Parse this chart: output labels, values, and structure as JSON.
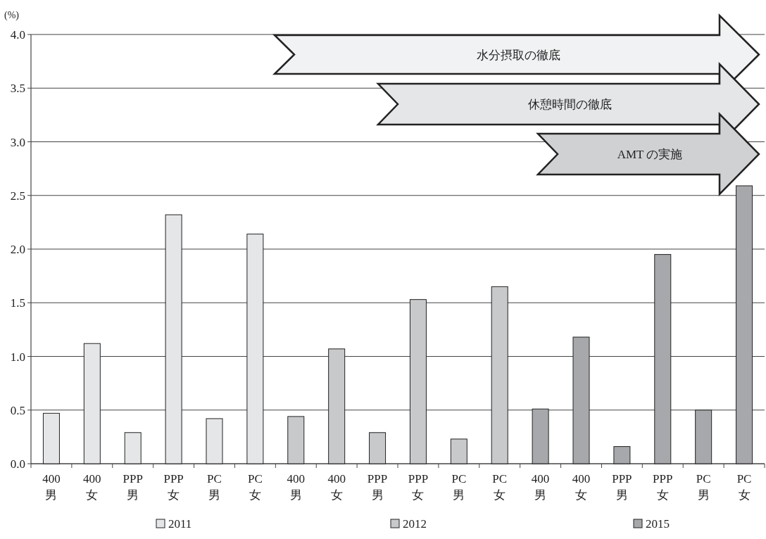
{
  "chart_data": {
    "type": "bar",
    "ylabel": "(%)",
    "categories": [
      "400\n男",
      "400\n女",
      "PPP\n男",
      "PPP\n女",
      "PC\n男",
      "PC\n女",
      "400\n男",
      "400\n女",
      "PPP\n男",
      "PPP\n女",
      "PC\n男",
      "PC\n女",
      "400\n男",
      "400\n女",
      "PPP\n男",
      "PPP\n女",
      "PC\n男",
      "PC\n女"
    ],
    "series": [
      {
        "name": "2011",
        "color": "#e5e6e8",
        "values": [
          0.47,
          1.12,
          0.29,
          2.32,
          0.42,
          2.14,
          null,
          null,
          null,
          null,
          null,
          null,
          null,
          null,
          null,
          null,
          null,
          null
        ]
      },
      {
        "name": "2012",
        "color": "#c8c9cb",
        "values": [
          null,
          null,
          null,
          null,
          null,
          null,
          0.44,
          1.07,
          0.29,
          1.53,
          0.23,
          1.65,
          null,
          null,
          null,
          null,
          null,
          null
        ]
      },
      {
        "name": "2015",
        "color": "#a7a8ab",
        "values": [
          null,
          null,
          null,
          null,
          null,
          null,
          null,
          null,
          null,
          null,
          null,
          null,
          0.51,
          1.18,
          0.16,
          1.95,
          0.5,
          2.59
        ]
      }
    ],
    "ylim": [
      0,
      4
    ],
    "yticks": [
      {
        "value": 0,
        "label": "0.0"
      },
      {
        "value": 0.5,
        "label": "0.5"
      },
      {
        "value": 1,
        "label": "1.0"
      },
      {
        "value": 1.5,
        "label": "1.5"
      },
      {
        "value": 2,
        "label": "2.0"
      },
      {
        "value": 2.5,
        "label": "2.5"
      },
      {
        "value": 3,
        "label": "3.0"
      },
      {
        "value": 3.5,
        "label": "3.5"
      },
      {
        "value": 4,
        "label": "4.0"
      }
    ],
    "grid": "y",
    "legend": "bottom",
    "annotations": [
      "水分摂取の徹底",
      "休憩時間の徹底",
      "AMT の実施"
    ]
  }
}
